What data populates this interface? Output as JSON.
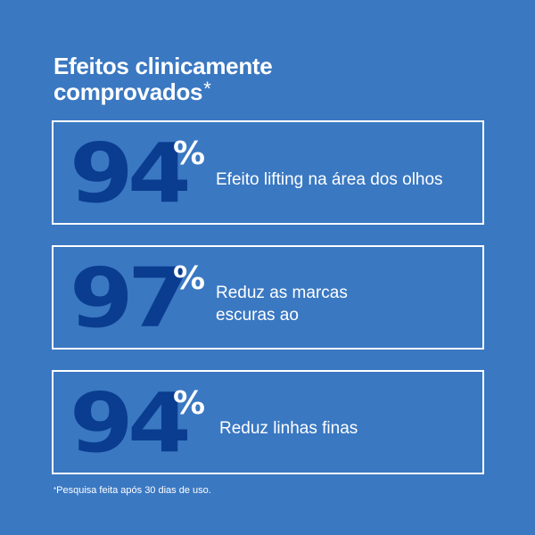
{
  "headline": {
    "line1": "Efeitos clinicamente",
    "line2": "comprovados",
    "asterisk": "*"
  },
  "stats": [
    {
      "value": "94",
      "unit": "%",
      "text": "Efeito lifting na área dos olhos"
    },
    {
      "value": "97",
      "unit": "%",
      "text": "Reduz as marcas escuras ao"
    },
    {
      "value": "94",
      "unit": "%",
      "text": "Reduz linhas finas"
    }
  ],
  "footnote": {
    "asterisk": "*",
    "text": "Pesquisa feita após 30 dias de uso."
  },
  "colors": {
    "background": "#3a78c2",
    "number": "#0a3d8f",
    "text": "#ffffff"
  }
}
